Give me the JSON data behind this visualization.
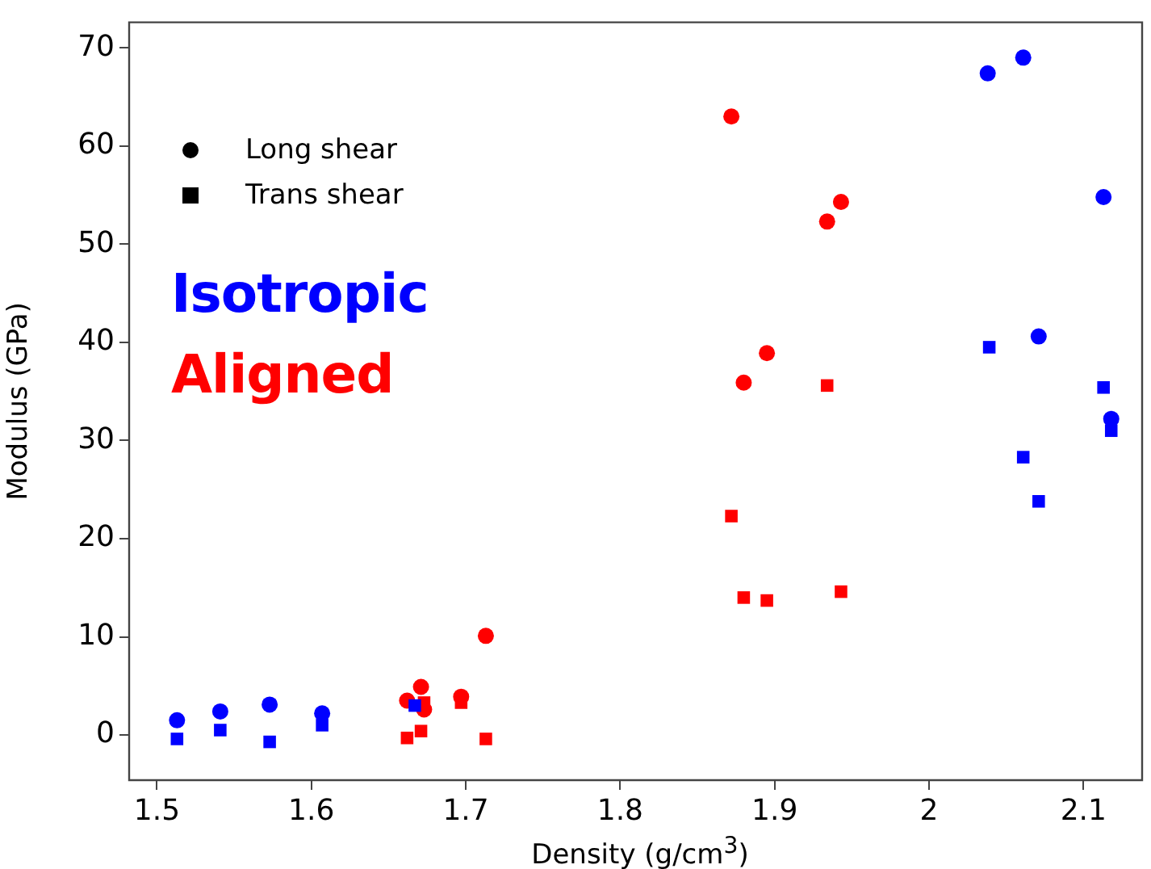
{
  "chart_data": {
    "type": "scatter",
    "xlabel": "Density (g/cm$^{3}$)",
    "ylabel": "Modulus (GPa)",
    "xlim": [
      1.482,
      2.138
    ],
    "xticks": [
      1.5,
      1.6,
      1.7,
      1.8,
      1.9,
      2.0,
      2.1
    ],
    "ylim": [
      -4.6,
      72.6
    ],
    "yticks": [
      0,
      10,
      20,
      30,
      40,
      50,
      60,
      70
    ],
    "grid": false,
    "series": [
      {
        "color": "#0000ff",
        "marker": "circle",
        "x": [
          1.513,
          1.541,
          1.573,
          1.607,
          2.038,
          2.061,
          2.113,
          2.071,
          2.118
        ],
        "values": [
          1.5,
          2.4,
          3.1,
          2.2,
          67.4,
          69.0,
          54.8,
          40.6,
          32.2
        ]
      },
      {
        "color": "#0000ff",
        "marker": "square",
        "x": [
          1.513,
          1.541,
          1.573,
          1.607,
          1.667,
          2.039,
          2.113,
          2.061,
          2.071,
          2.118
        ],
        "values": [
          -0.4,
          0.5,
          -0.7,
          1.0,
          3.0,
          39.5,
          35.4,
          28.3,
          23.8,
          31.0
        ]
      },
      {
        "color": "#ff0000",
        "marker": "circle",
        "x": [
          1.662,
          1.671,
          1.673,
          1.697,
          1.713,
          1.872,
          1.943,
          1.934,
          1.895,
          1.88
        ],
        "values": [
          3.5,
          4.9,
          2.6,
          3.9,
          10.1,
          63.0,
          54.3,
          52.3,
          38.9,
          35.9
        ]
      },
      {
        "color": "#ff0000",
        "marker": "square",
        "x": [
          1.662,
          1.671,
          1.673,
          1.697,
          1.713,
          1.934,
          1.872,
          1.88,
          1.895,
          1.943
        ],
        "values": [
          -0.3,
          0.4,
          3.3,
          3.3,
          -0.4,
          35.6,
          22.3,
          14.0,
          13.7,
          14.6
        ]
      }
    ],
    "annotations": [
      "Long shear",
      "Trans shear",
      "Isotropic",
      "Aligned"
    ]
  }
}
